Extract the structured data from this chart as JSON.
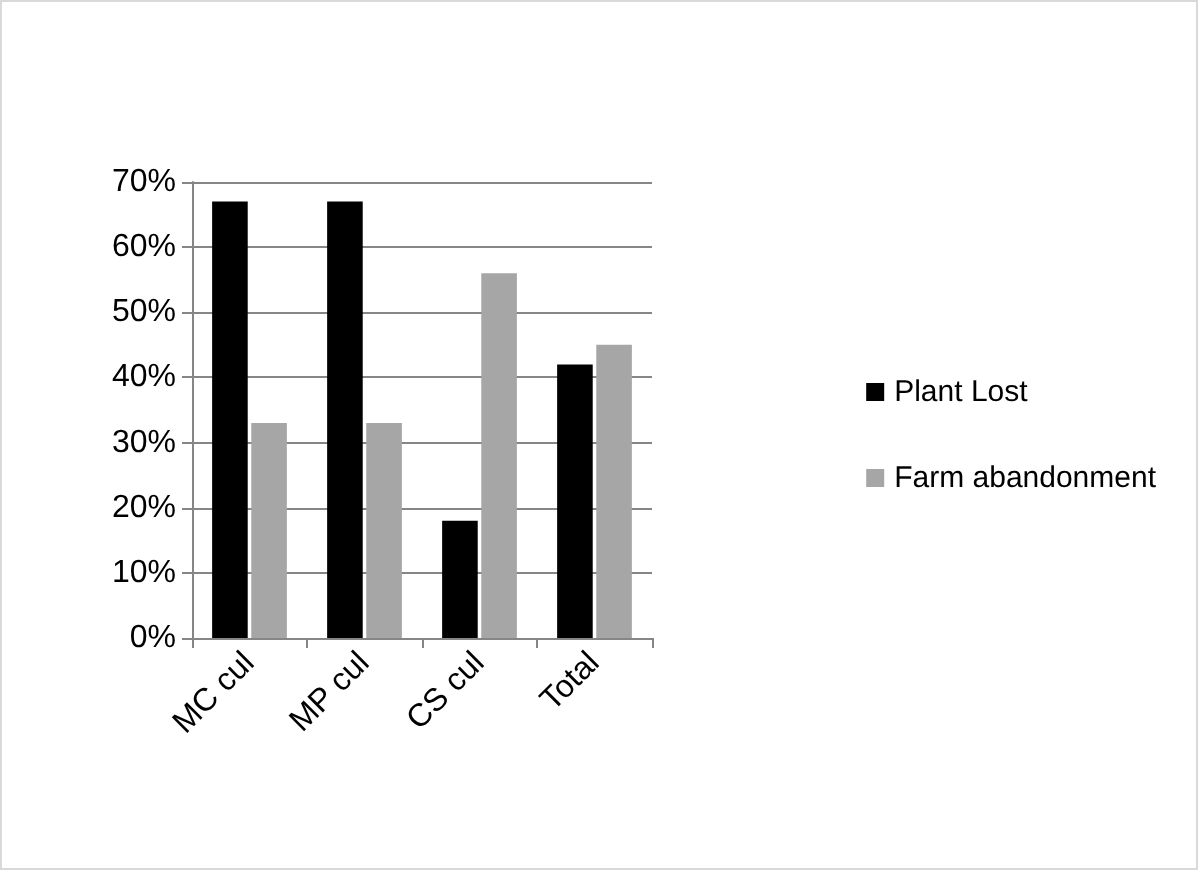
{
  "chart_data": {
    "type": "bar",
    "categories": [
      "MC cul",
      "MP cul",
      "CS cul",
      "Total"
    ],
    "series": [
      {
        "name": "Plant Lost",
        "color": "#000000",
        "values": [
          67,
          67,
          18,
          42
        ]
      },
      {
        "name": "Farm abandonment",
        "color": "#a6a6a6",
        "values": [
          33,
          33,
          56,
          45
        ]
      }
    ],
    "ylim": [
      0,
      70
    ],
    "yticks": [
      {
        "value": 0,
        "label": "0%"
      },
      {
        "value": 10,
        "label": "10%"
      },
      {
        "value": 20,
        "label": "20%"
      },
      {
        "value": 30,
        "label": "30%"
      },
      {
        "value": 40,
        "label": "40%"
      },
      {
        "value": 50,
        "label": "50%"
      },
      {
        "value": 60,
        "label": "60%"
      },
      {
        "value": 70,
        "label": "70%"
      }
    ],
    "grid": "y",
    "legend": "right"
  }
}
